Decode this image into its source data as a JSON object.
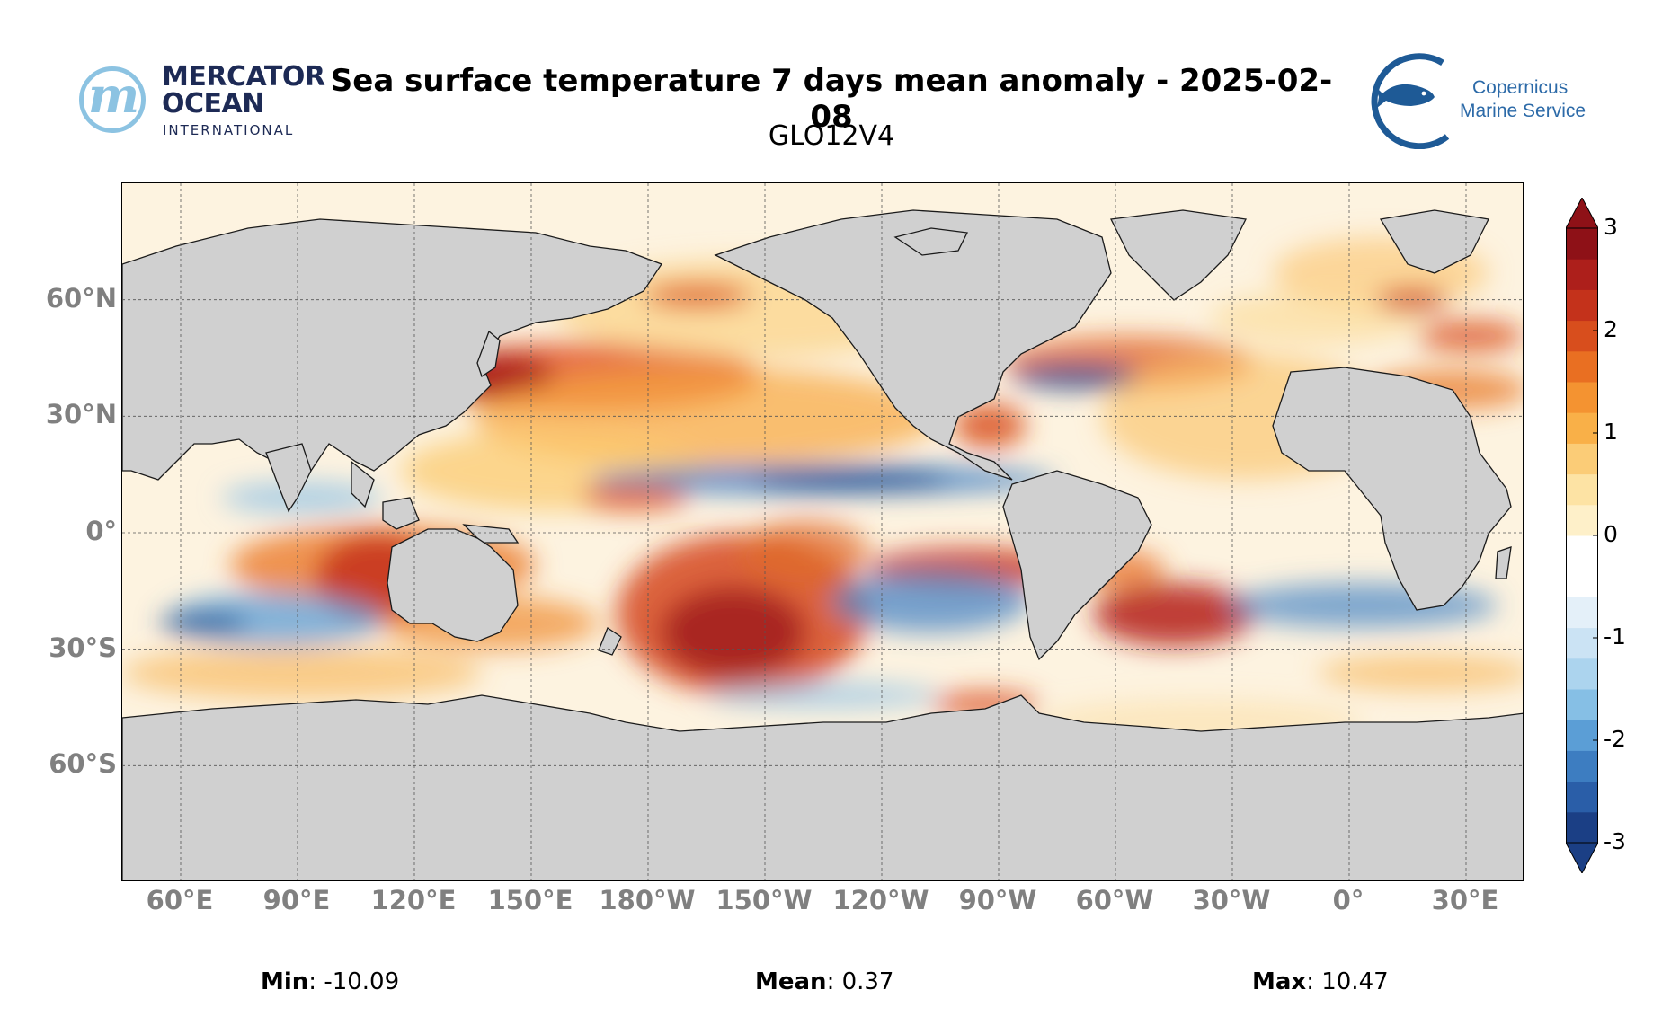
{
  "header": {
    "title": "Sea surface temperature 7 days mean anomaly - 2025-02-08",
    "subtitle": "GLO12V4"
  },
  "logos": {
    "mercator": {
      "line1": "MERCATOR",
      "line2": "OCEAN",
      "line3": "INTERNATIONAL",
      "icon": "mercator-m-logo"
    },
    "copernicus": {
      "line1": "Copernicus",
      "line2": "Marine Service",
      "icon": "fish-logo"
    }
  },
  "map": {
    "projection": "equirectangular",
    "lon_range": [
      45,
      405
    ],
    "lat_range": [
      -90,
      90
    ],
    "lat_ticks": [
      {
        "value": 60,
        "label": "60°N"
      },
      {
        "value": 30,
        "label": "30°N"
      },
      {
        "value": 0,
        "label": "0°"
      },
      {
        "value": -30,
        "label": "30°S"
      },
      {
        "value": -60,
        "label": "60°S"
      }
    ],
    "lon_ticks": [
      {
        "value": 60,
        "label": "60°E"
      },
      {
        "value": 90,
        "label": "90°E"
      },
      {
        "value": 120,
        "label": "120°E"
      },
      {
        "value": 150,
        "label": "150°E"
      },
      {
        "value": 180,
        "label": "180°W"
      },
      {
        "value": 210,
        "label": "150°W"
      },
      {
        "value": 240,
        "label": "120°W"
      },
      {
        "value": 270,
        "label": "90°W"
      },
      {
        "value": 300,
        "label": "60°W"
      },
      {
        "value": 330,
        "label": "30°W"
      },
      {
        "value": 360,
        "label": "0°"
      },
      {
        "value": 390,
        "label": "30°E"
      }
    ],
    "grid": true,
    "land_color": "#d0d0d0"
  },
  "colorbar": {
    "min": -3,
    "max": 3,
    "ticks": [
      3,
      2,
      1,
      0,
      -1,
      -2,
      -3
    ],
    "tick_labels": [
      "3",
      "2",
      "1",
      "0",
      "-1",
      "-2",
      "-3"
    ],
    "colors": [
      "#1b3f85",
      "#2a5ea8",
      "#3d7dc1",
      "#5b9ed6",
      "#86bfe5",
      "#acd4ee",
      "#cbe3f4",
      "#e4f0f9",
      "#ffffff",
      "#ffffff",
      "#fef0c9",
      "#fde3a4",
      "#fbcc77",
      "#f9b048",
      "#f49331",
      "#e96f22",
      "#d84e1d",
      "#c4321b",
      "#ad1f1b",
      "#8e1117"
    ],
    "extend": "both"
  },
  "stats": {
    "min_label": "Min",
    "min_value": ": -10.09",
    "mean_label": "Mean",
    "mean_value": ": 0.37",
    "max_label": "Max",
    "max_value": ": 10.47"
  }
}
